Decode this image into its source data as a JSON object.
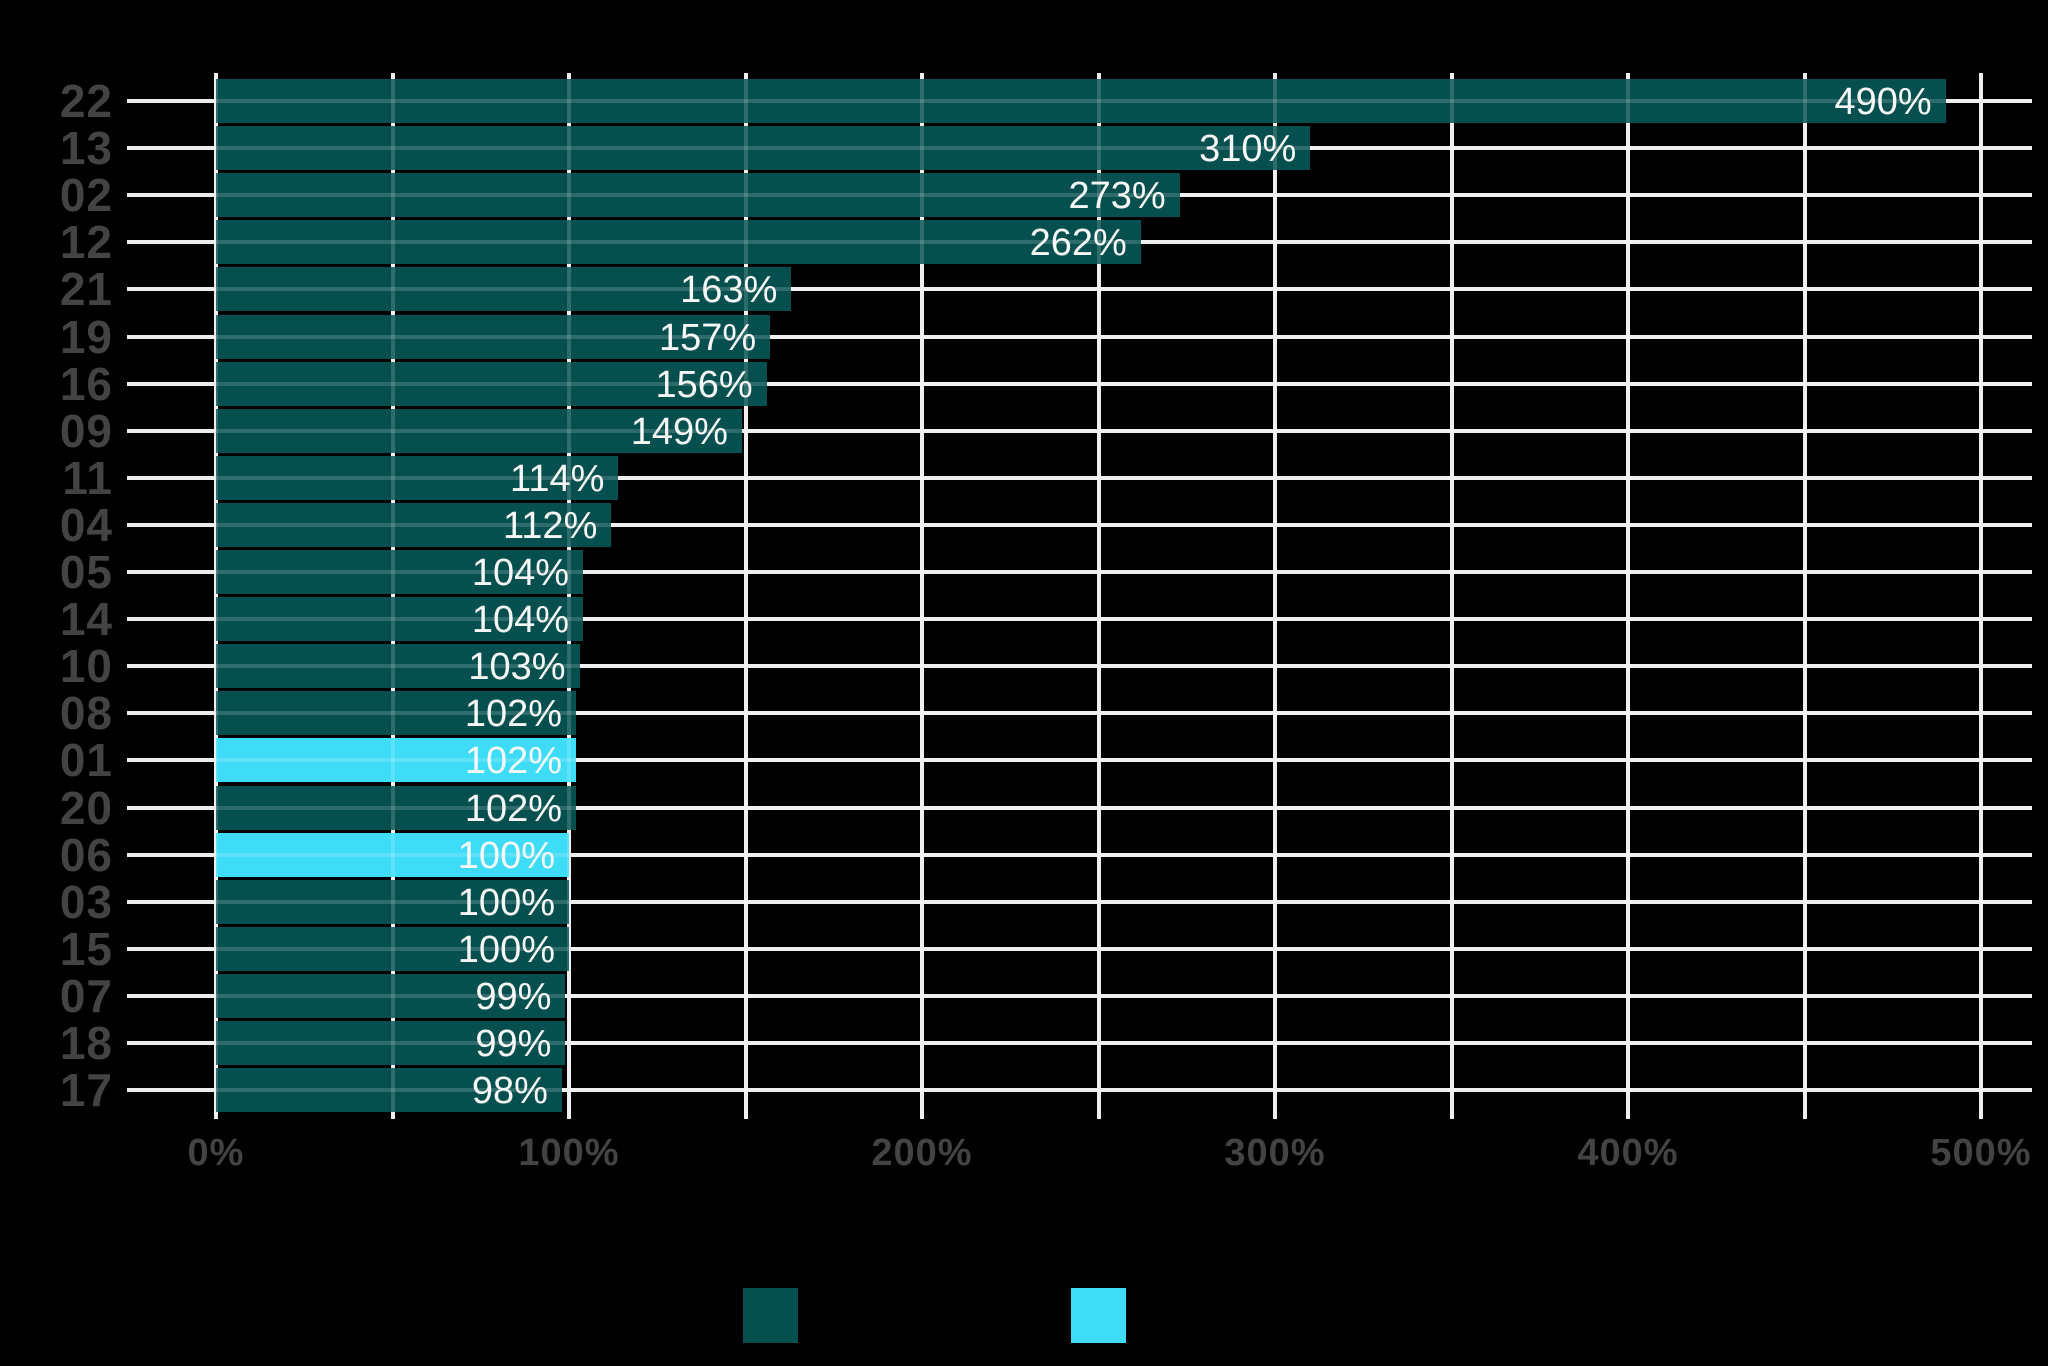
{
  "chart_data": {
    "type": "bar",
    "orientation": "horizontal",
    "categories": [
      "22",
      "13",
      "02",
      "12",
      "21",
      "19",
      "16",
      "09",
      "11",
      "04",
      "05",
      "14",
      "10",
      "08",
      "01",
      "20",
      "06",
      "03",
      "15",
      "07",
      "18",
      "17"
    ],
    "values": [
      490,
      310,
      273,
      262,
      163,
      157,
      156,
      149,
      114,
      112,
      104,
      104,
      103,
      102,
      102,
      102,
      100,
      100,
      100,
      99,
      99,
      98
    ],
    "value_labels": [
      "490%",
      "310%",
      "273%",
      "262%",
      "163%",
      "157%",
      "156%",
      "149%",
      "114%",
      "112%",
      "104%",
      "104%",
      "103%",
      "102%",
      "102%",
      "102%",
      "100%",
      "100%",
      "100%",
      "99%",
      "99%",
      "98%"
    ],
    "highlighted_categories": [
      "01",
      "06"
    ],
    "x_axis": {
      "tick_labels": [
        "0%",
        "100%",
        "200%",
        "300%",
        "400%",
        "500%"
      ],
      "tick_values": [
        0,
        100,
        200,
        300,
        400,
        500
      ],
      "gridline_step_pct": 50,
      "range_pct": [
        0,
        514
      ]
    },
    "colors": {
      "bar": "#05504E",
      "bar_highlight": "#3FDCF8",
      "gridline": "#ECECEC",
      "background": "#000000",
      "value_text": "#F7F7F7",
      "axis_text": "#434343"
    },
    "legend": {
      "position": "bottom",
      "items": [
        {
          "swatch_color": "#05504E",
          "label": ""
        },
        {
          "swatch_color": "#3FDCF8",
          "label": ""
        }
      ]
    },
    "grid": true
  }
}
